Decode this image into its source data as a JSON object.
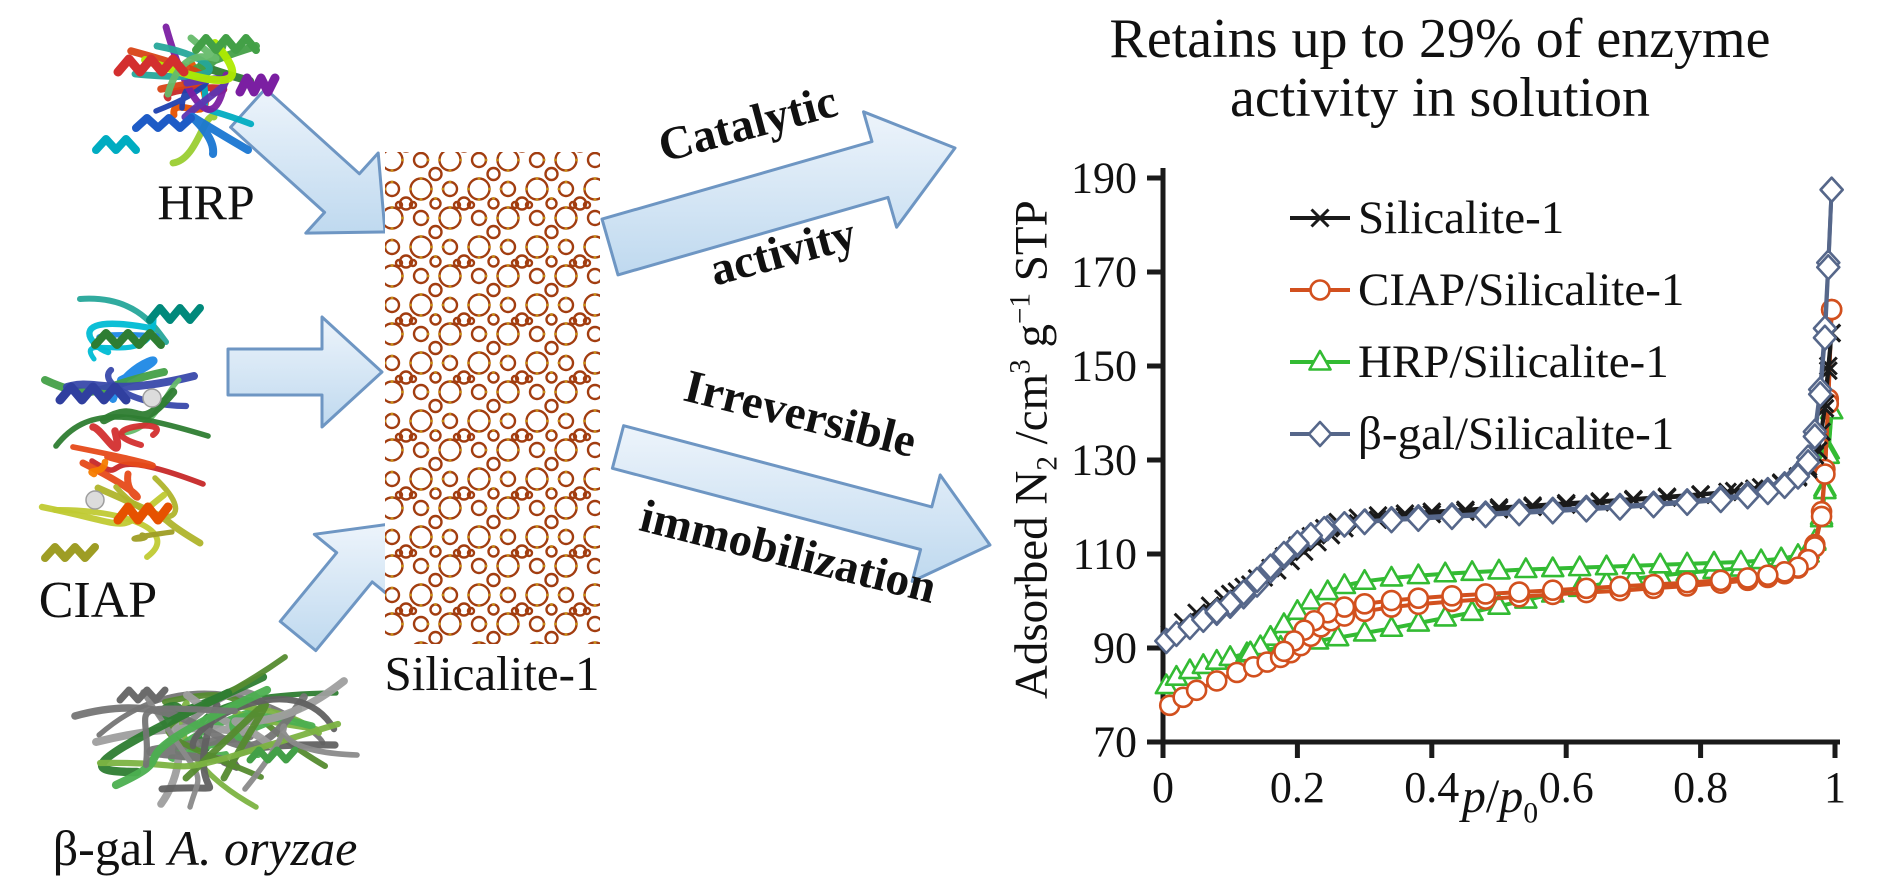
{
  "figure": {
    "title": "Retains up to 29% of enzyme activity in solution",
    "proteins": {
      "hrp_label": "HRP",
      "ciap_label": "CIAP",
      "bgal_label": {
        "main": "β-gal ",
        "species": "A. oryzae"
      }
    },
    "material_label": "Silicalite-1",
    "arrow_labels": {
      "top_line1": "Catalytic",
      "top_line2": "activity",
      "bottom_line1": "Irreversible",
      "bottom_line2": "immobilization"
    },
    "colors": {
      "arrow_fill_light": "#EDF4FB",
      "arrow_fill_dark": "#BFD9EF",
      "arrow_stroke": "#6E96C3",
      "zeolite_stroke": "#A23D10",
      "zeolite_dot": "#C99016"
    }
  },
  "chart_data": {
    "type": "line",
    "title": "Retains up to 29% of enzyme activity in solution",
    "xlabel": "p/p0",
    "ylabel": "Adsorbed N2 /cm3 g-1 STP",
    "xlim": [
      0,
      1
    ],
    "ylim": [
      70,
      190
    ],
    "xticks": [
      0,
      0.2,
      0.4,
      0.6,
      0.8,
      1
    ],
    "yticks": [
      70,
      90,
      110,
      130,
      150,
      170,
      190
    ],
    "grid": false,
    "legend_position": "upper-left-inside",
    "note": "N2 adsorption-desorption isotherms; each series has an adsorption and a desorption branch forming a hysteresis loop",
    "series": [
      {
        "name": "Silicalite-1",
        "color": "#1a1a1a",
        "marker": "x",
        "adsorption": [
          [
            0.01,
            93
          ],
          [
            0.03,
            95.5
          ],
          [
            0.05,
            97.5
          ],
          [
            0.07,
            99
          ],
          [
            0.09,
            100.5
          ],
          [
            0.11,
            102
          ],
          [
            0.13,
            103.5
          ],
          [
            0.15,
            105
          ],
          [
            0.17,
            106.5
          ],
          [
            0.19,
            108.5
          ],
          [
            0.21,
            110.5
          ],
          [
            0.23,
            112.5
          ],
          [
            0.25,
            114
          ],
          [
            0.27,
            115.5
          ],
          [
            0.29,
            116.5
          ],
          [
            0.32,
            117.3
          ],
          [
            0.36,
            118
          ],
          [
            0.4,
            118.5
          ],
          [
            0.45,
            119
          ],
          [
            0.5,
            119.5
          ],
          [
            0.55,
            120
          ],
          [
            0.6,
            120.5
          ],
          [
            0.65,
            121
          ],
          [
            0.7,
            121.5
          ],
          [
            0.75,
            122
          ],
          [
            0.8,
            122.6
          ],
          [
            0.85,
            123.4
          ],
          [
            0.89,
            124.2
          ],
          [
            0.92,
            125.2
          ],
          [
            0.945,
            126.5
          ],
          [
            0.96,
            128.5
          ],
          [
            0.97,
            131
          ],
          [
            0.98,
            136
          ],
          [
            0.985,
            142
          ],
          [
            0.99,
            150
          ],
          [
            0.995,
            157
          ]
        ],
        "desorption": [
          [
            0.995,
            157
          ],
          [
            0.99,
            149
          ],
          [
            0.985,
            141
          ],
          [
            0.975,
            132
          ],
          [
            0.96,
            128
          ],
          [
            0.945,
            126.3
          ],
          [
            0.92,
            125
          ],
          [
            0.88,
            123.9
          ],
          [
            0.84,
            123.2
          ],
          [
            0.8,
            122.7
          ],
          [
            0.75,
            122.2
          ],
          [
            0.7,
            121.7
          ],
          [
            0.65,
            121.2
          ],
          [
            0.6,
            120.8
          ],
          [
            0.55,
            120.3
          ],
          [
            0.5,
            119.9
          ],
          [
            0.45,
            119.4
          ],
          [
            0.4,
            119
          ],
          [
            0.36,
            118.6
          ],
          [
            0.32,
            118.2
          ],
          [
            0.29,
            117.7
          ],
          [
            0.26,
            116.8
          ],
          [
            0.24,
            115.5
          ],
          [
            0.22,
            113.8
          ],
          [
            0.2,
            111.8
          ],
          [
            0.18,
            109.5
          ],
          [
            0.16,
            107
          ],
          [
            0.14,
            104.8
          ],
          [
            0.12,
            103
          ],
          [
            0.1,
            101.5
          ]
        ]
      },
      {
        "name": "CIAP/Silicalite-1",
        "color": "#D2501E",
        "marker": "circle",
        "adsorption": [
          [
            0.01,
            77.8
          ],
          [
            0.03,
            79.5
          ],
          [
            0.05,
            81
          ],
          [
            0.08,
            83
          ],
          [
            0.11,
            84.8
          ],
          [
            0.135,
            86
          ],
          [
            0.155,
            87
          ],
          [
            0.175,
            88
          ],
          [
            0.19,
            89
          ],
          [
            0.205,
            90.5
          ],
          [
            0.22,
            92.5
          ],
          [
            0.235,
            94.5
          ],
          [
            0.25,
            95.8
          ],
          [
            0.27,
            96.8
          ],
          [
            0.3,
            97.8
          ],
          [
            0.34,
            98.7
          ],
          [
            0.38,
            99.3
          ],
          [
            0.43,
            99.9
          ],
          [
            0.48,
            100.4
          ],
          [
            0.53,
            100.9
          ],
          [
            0.58,
            101.4
          ],
          [
            0.63,
            101.8
          ],
          [
            0.68,
            102.2
          ],
          [
            0.73,
            102.7
          ],
          [
            0.78,
            103.2
          ],
          [
            0.83,
            103.8
          ],
          [
            0.87,
            104.4
          ],
          [
            0.9,
            105
          ],
          [
            0.925,
            105.8
          ],
          [
            0.945,
            107
          ],
          [
            0.96,
            109
          ],
          [
            0.97,
            112
          ],
          [
            0.98,
            119
          ],
          [
            0.985,
            128
          ],
          [
            0.99,
            143
          ],
          [
            0.995,
            162
          ]
        ],
        "desorption": [
          [
            0.995,
            162
          ],
          [
            0.99,
            142
          ],
          [
            0.985,
            127
          ],
          [
            0.98,
            118
          ],
          [
            0.97,
            111.5
          ],
          [
            0.96,
            108.8
          ],
          [
            0.945,
            107.2
          ],
          [
            0.925,
            106.2
          ],
          [
            0.9,
            105.5
          ],
          [
            0.87,
            104.9
          ],
          [
            0.83,
            104.4
          ],
          [
            0.78,
            103.9
          ],
          [
            0.73,
            103.5
          ],
          [
            0.68,
            103.1
          ],
          [
            0.63,
            102.7
          ],
          [
            0.58,
            102.3
          ],
          [
            0.53,
            101.9
          ],
          [
            0.48,
            101.5
          ],
          [
            0.43,
            101.1
          ],
          [
            0.38,
            100.6
          ],
          [
            0.34,
            100.1
          ],
          [
            0.3,
            99.4
          ],
          [
            0.27,
            98.7
          ],
          [
            0.245,
            97.5
          ],
          [
            0.225,
            95.8
          ],
          [
            0.21,
            93.8
          ],
          [
            0.195,
            91.5
          ],
          [
            0.18,
            89.3
          ]
        ]
      },
      {
        "name": "HRP/Silicalite-1",
        "color": "#33BB33",
        "marker": "triangle",
        "adsorption": [
          [
            0.005,
            82
          ],
          [
            0.02,
            83.8
          ],
          [
            0.04,
            85.2
          ],
          [
            0.06,
            86.3
          ],
          [
            0.08,
            87.2
          ],
          [
            0.1,
            88
          ],
          [
            0.125,
            88.8
          ],
          [
            0.15,
            89.5
          ],
          [
            0.175,
            90.2
          ],
          [
            0.2,
            90.8
          ],
          [
            0.23,
            91.5
          ],
          [
            0.26,
            92.2
          ],
          [
            0.3,
            93.2
          ],
          [
            0.34,
            94.2
          ],
          [
            0.38,
            95.3
          ],
          [
            0.42,
            96.4
          ],
          [
            0.46,
            97.6
          ],
          [
            0.5,
            98.9
          ],
          [
            0.54,
            100.2
          ],
          [
            0.58,
            101.5
          ],
          [
            0.62,
            102.7
          ],
          [
            0.66,
            103.8
          ],
          [
            0.7,
            104.7
          ],
          [
            0.74,
            105.4
          ],
          [
            0.78,
            106
          ],
          [
            0.82,
            106.5
          ],
          [
            0.86,
            107
          ],
          [
            0.89,
            107.4
          ],
          [
            0.92,
            107.9
          ],
          [
            0.945,
            108.6
          ],
          [
            0.96,
            110
          ],
          [
            0.97,
            112.5
          ],
          [
            0.98,
            118
          ],
          [
            0.985,
            124
          ],
          [
            0.99,
            132
          ],
          [
            0.995,
            140.5
          ]
        ],
        "desorption": [
          [
            0.995,
            140.5
          ],
          [
            0.99,
            131
          ],
          [
            0.985,
            123.5
          ],
          [
            0.98,
            117.5
          ],
          [
            0.97,
            112.8
          ],
          [
            0.96,
            110.8
          ],
          [
            0.945,
            109.7
          ],
          [
            0.92,
            109
          ],
          [
            0.89,
            108.6
          ],
          [
            0.86,
            108.3
          ],
          [
            0.82,
            108.1
          ],
          [
            0.78,
            107.9
          ],
          [
            0.74,
            107.7
          ],
          [
            0.7,
            107.5
          ],
          [
            0.66,
            107.3
          ],
          [
            0.62,
            107.1
          ],
          [
            0.58,
            106.9
          ],
          [
            0.54,
            106.7
          ],
          [
            0.5,
            106.4
          ],
          [
            0.46,
            106.1
          ],
          [
            0.42,
            105.8
          ],
          [
            0.38,
            105.4
          ],
          [
            0.34,
            104.9
          ],
          [
            0.3,
            104.2
          ],
          [
            0.27,
            103.3
          ],
          [
            0.245,
            102
          ],
          [
            0.22,
            100
          ],
          [
            0.2,
            97.8
          ],
          [
            0.18,
            95
          ],
          [
            0.16,
            92.3
          ],
          [
            0.145,
            90.3
          ],
          [
            0.13,
            89
          ]
        ]
      },
      {
        "name": "β-gal/Silicalite-1",
        "color": "#56678A",
        "marker": "diamond",
        "adsorption": [
          [
            0.005,
            91.5
          ],
          [
            0.02,
            93
          ],
          [
            0.04,
            94.5
          ],
          [
            0.06,
            96
          ],
          [
            0.08,
            97.5
          ],
          [
            0.1,
            99
          ],
          [
            0.12,
            101
          ],
          [
            0.14,
            103.5
          ],
          [
            0.16,
            106.5
          ],
          [
            0.18,
            109.5
          ],
          [
            0.2,
            112
          ],
          [
            0.22,
            114
          ],
          [
            0.245,
            115.5
          ],
          [
            0.27,
            116.3
          ],
          [
            0.3,
            116.9
          ],
          [
            0.34,
            117.4
          ],
          [
            0.38,
            117.8
          ],
          [
            0.43,
            118.2
          ],
          [
            0.48,
            118.6
          ],
          [
            0.53,
            119
          ],
          [
            0.58,
            119.4
          ],
          [
            0.63,
            119.8
          ],
          [
            0.68,
            120.2
          ],
          [
            0.73,
            120.7
          ],
          [
            0.78,
            121.2
          ],
          [
            0.83,
            121.9
          ],
          [
            0.87,
            122.7
          ],
          [
            0.9,
            123.6
          ],
          [
            0.925,
            124.8
          ],
          [
            0.945,
            127
          ],
          [
            0.96,
            130.5
          ],
          [
            0.97,
            136
          ],
          [
            0.978,
            145
          ],
          [
            0.985,
            158
          ],
          [
            0.99,
            172
          ],
          [
            0.995,
            187.5
          ]
        ],
        "desorption": [
          [
            0.995,
            187.5
          ],
          [
            0.99,
            171
          ],
          [
            0.985,
            156
          ],
          [
            0.978,
            144
          ],
          [
            0.97,
            135
          ],
          [
            0.96,
            129.5
          ],
          [
            0.945,
            126.5
          ],
          [
            0.925,
            124.5
          ],
          [
            0.9,
            123.2
          ],
          [
            0.87,
            122.3
          ],
          [
            0.83,
            121.5
          ],
          [
            0.78,
            120.9
          ],
          [
            0.73,
            120.4
          ],
          [
            0.68,
            119.9
          ],
          [
            0.63,
            119.5
          ],
          [
            0.58,
            119.1
          ],
          [
            0.53,
            118.7
          ],
          [
            0.48,
            118.3
          ],
          [
            0.43,
            117.9
          ],
          [
            0.38,
            117.5
          ],
          [
            0.34,
            117.2
          ],
          [
            0.3,
            116.8
          ],
          [
            0.27,
            116.3
          ],
          [
            0.24,
            115.3
          ],
          [
            0.22,
            113.9
          ],
          [
            0.2,
            112.3
          ],
          [
            0.18,
            110
          ],
          [
            0.16,
            107.3
          ],
          [
            0.14,
            104.5
          ],
          [
            0.12,
            101.8
          ],
          [
            0.1,
            99.5
          ],
          [
            0.08,
            97.8
          ]
        ]
      }
    ]
  }
}
